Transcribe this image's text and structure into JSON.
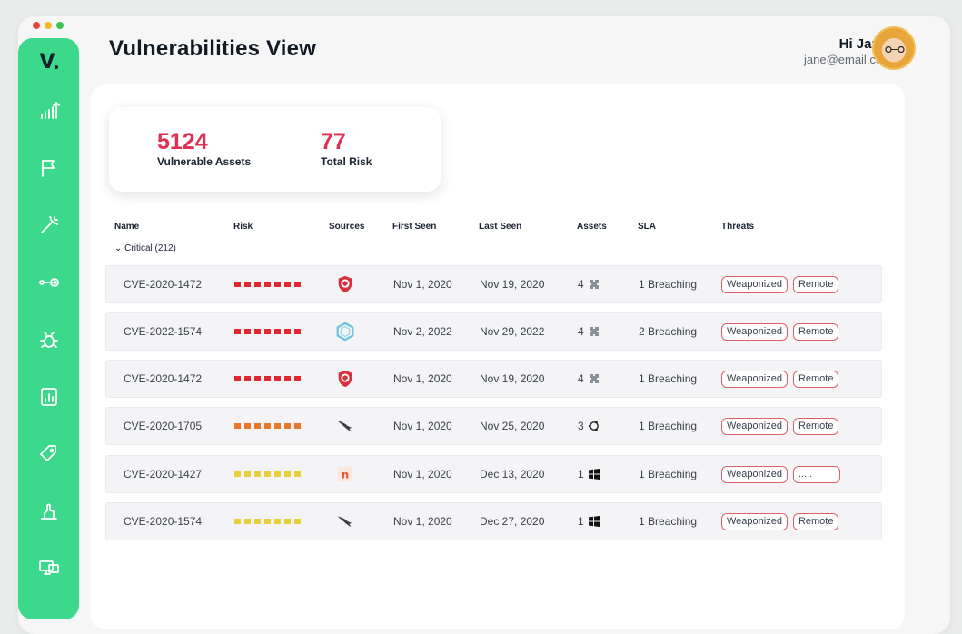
{
  "window": {
    "dot_colors": [
      "#e8443a",
      "#f3b52b",
      "#3cc153"
    ]
  },
  "sidebar": {
    "logo_text": "V",
    "items": [
      {
        "icon": "chart-up-icon"
      },
      {
        "icon": "flag-icon"
      },
      {
        "icon": "magic-wand-icon"
      },
      {
        "icon": "key-connect-icon"
      },
      {
        "icon": "bug-icon"
      },
      {
        "icon": "report-icon"
      },
      {
        "icon": "tag-icon"
      },
      {
        "icon": "hand-icon"
      },
      {
        "icon": "monitor-icon"
      }
    ]
  },
  "header": {
    "title": "Vulnerabilities View",
    "greeting": "Hi Jane!",
    "email": "jane@email.com"
  },
  "stats": {
    "vulnerable_assets": {
      "value": "5124",
      "label": "Vulnerable Assets"
    },
    "total_risk": {
      "value": "77",
      "label": "Total Risk"
    }
  },
  "table": {
    "headers": {
      "name": "Name",
      "risk": "Risk",
      "sources": "Sources",
      "first_seen": "First Seen",
      "last_seen": "Last Seen",
      "assets": "Assets",
      "sla": "SLA",
      "threats": "Threats"
    },
    "group_label": "Critical (212)",
    "rows": [
      {
        "name": "CVE-2020-1472",
        "risk_color": "#e0262f",
        "risk_segments": 7,
        "source_icon": "shield-q-icon",
        "first_seen": "Nov 1, 2020",
        "last_seen": "Nov 19, 2020",
        "assets": "4",
        "asset_icon": "puzzle-icon",
        "sla": "1 Breaching",
        "threats": [
          "Weaponized",
          "Remote"
        ]
      },
      {
        "name": "CVE-2022-1574",
        "risk_color": "#e0262f",
        "risk_segments": 7,
        "source_icon": "hexagon-ring-icon",
        "first_seen": "Nov 2, 2022",
        "last_seen": "Nov 29, 2022",
        "assets": "4",
        "asset_icon": "puzzle-icon",
        "sla": "2 Breaching",
        "threats": [
          "Weaponized",
          "Remote"
        ]
      },
      {
        "name": "CVE-2020-1472",
        "risk_color": "#e0262f",
        "risk_segments": 7,
        "source_icon": "shield-q-icon",
        "first_seen": "Nov 1, 2020",
        "last_seen": "Nov 19, 2020",
        "assets": "4",
        "asset_icon": "puzzle-icon",
        "sla": "1 Breaching",
        "threats": [
          "Weaponized",
          "Remote"
        ]
      },
      {
        "name": "CVE-2020-1705",
        "risk_color": "#e8782a",
        "risk_segments": 7,
        "source_icon": "falcon-icon",
        "first_seen": "Nov 1, 2020",
        "last_seen": "Nov 25, 2020",
        "assets": "3",
        "asset_icon": "ubuntu-icon",
        "sla": "1 Breaching",
        "threats": [
          "Weaponized",
          "Remote"
        ]
      },
      {
        "name": "CVE-2020-1427",
        "risk_color": "#e5cf3a",
        "risk_segments": 7,
        "source_icon": "tenable-icon",
        "first_seen": "Nov 1, 2020",
        "last_seen": "Dec 13, 2020",
        "assets": "1",
        "asset_icon": "windows-icon",
        "sla": "1 Breaching",
        "threats": [
          "Weaponized",
          "....."
        ]
      },
      {
        "name": "CVE-2020-1574",
        "risk_color": "#e5cf3a",
        "risk_segments": 7,
        "source_icon": "falcon-icon",
        "first_seen": "Nov 1, 2020",
        "last_seen": "Dec 27, 2020",
        "assets": "1",
        "asset_icon": "windows-icon",
        "sla": "1 Breaching",
        "threats": [
          "Weaponized",
          "Remote"
        ]
      }
    ]
  }
}
